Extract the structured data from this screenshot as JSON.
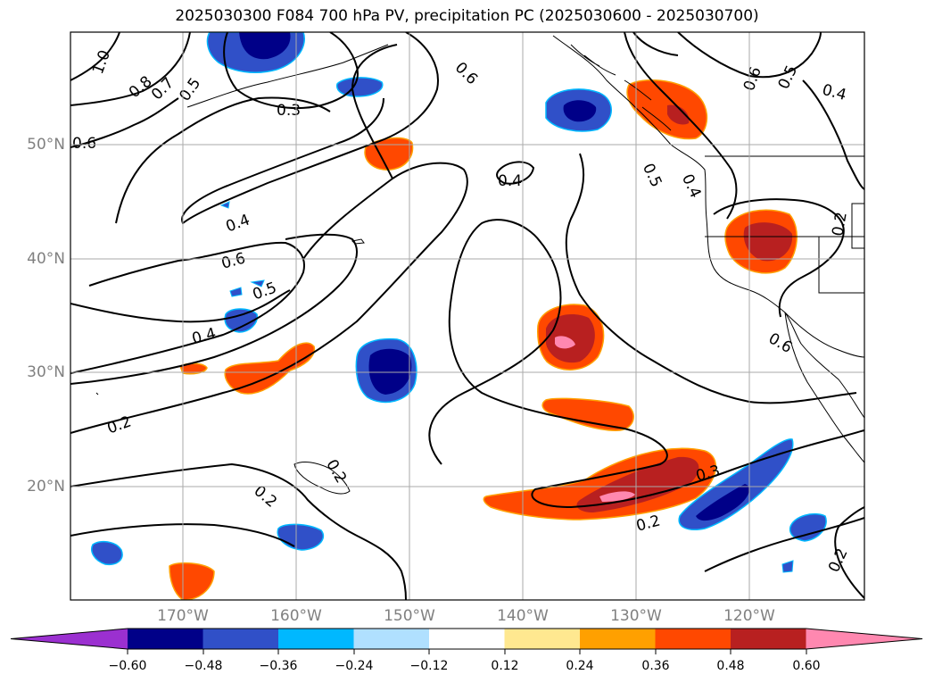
{
  "title": "2025030300 F084 700 hPa PV, precipitation PC (2025030600 - 2025030700)",
  "lat_labels": [
    "50°N",
    "40°N",
    "30°N",
    "20°N"
  ],
  "lon_labels": [
    "170°W",
    "160°W",
    "150°W",
    "140°W",
    "130°W",
    "120°W"
  ],
  "contour_labels": [
    "1.0",
    "0.8",
    "0.7",
    "0.5",
    "0.3",
    "0.6",
    "0.6",
    "0.4",
    "0.4",
    "0.6",
    "0.5",
    "0.4",
    "0.2",
    "0.2",
    "0.2",
    "0.2",
    "0.3",
    "0.2",
    "0.6",
    "0.5",
    "0.4",
    "0.5",
    "0.4",
    "0.6",
    "0.2"
  ],
  "colorbar": {
    "tick_labels": [
      "−0.60",
      "−0.48",
      "−0.36",
      "−0.24",
      "−0.12",
      "0.12",
      "0.24",
      "0.36",
      "0.48",
      "0.60"
    ],
    "colors": [
      "#9b30d0",
      "#000088",
      "#3050c8",
      "#00b8ff",
      "#b0e0ff",
      "#ffffff",
      "#ffe890",
      "#ffa000",
      "#ff4800",
      "#b82020",
      "#ff88b0"
    ]
  },
  "colors": {
    "neg_strong": "#000088",
    "neg_mid": "#3050c8",
    "neg_weak": "#00b8ff",
    "pos_weak": "#ffa000",
    "pos_mid": "#ff4800",
    "pos_strong": "#b82020",
    "pos_max": "#ff88b0"
  }
}
